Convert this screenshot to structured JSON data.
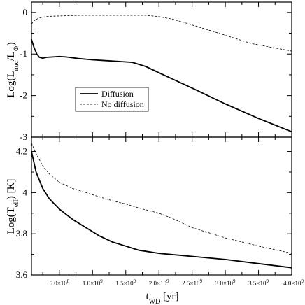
{
  "chart_data": [
    {
      "type": "line",
      "panel": "top",
      "ylabel": "Log(L_nuc/L_⊙)",
      "ylabel_main": "Log(L",
      "ylabel_sub": "nuc",
      "ylabel_mid": "/L",
      "ylabel_sub2": "⊙",
      "ylabel_end": ")",
      "xlim": [
        80000000.0,
        4000000000.0
      ],
      "ylim": [
        -3,
        0.25
      ],
      "yticks": [
        0,
        -1,
        -2,
        -3
      ],
      "ytick_labels": [
        "0",
        "-1",
        "-2",
        "-3"
      ],
      "legend": {
        "placement": "center-left",
        "entries": [
          "Diffusion",
          "No diffusion"
        ]
      },
      "series": [
        {
          "name": "Diffusion",
          "style": "solid",
          "x": [
            80000000.0,
            120000000.0,
            160000000.0,
            200000000.0,
            250000000.0,
            300000000.0,
            400000000.0,
            500000000.0,
            600000000.0,
            800000000.0,
            1000000000.0,
            1200000000.0,
            1400000000.0,
            1600000000.0,
            1800000000.0,
            2000000000.0,
            2500000000.0,
            3000000000.0,
            3500000000.0,
            4000000000.0
          ],
          "y": [
            -0.65,
            -0.85,
            -1.0,
            -1.08,
            -1.1,
            -1.08,
            -1.07,
            -1.06,
            -1.07,
            -1.11,
            -1.14,
            -1.16,
            -1.18,
            -1.2,
            -1.3,
            -1.45,
            -1.82,
            -2.2,
            -2.55,
            -2.87
          ]
        },
        {
          "name": "No diffusion",
          "style": "dashed",
          "x": [
            80000000.0,
            120000000.0,
            160000000.0,
            200000000.0,
            300000000.0,
            400000000.0,
            600000000.0,
            800000000.0,
            1000000000.0,
            1400000000.0,
            1800000000.0,
            2000000000.0,
            2200000000.0,
            2400000000.0,
            2600000000.0,
            3000000000.0,
            3400000000.0,
            3800000000.0,
            4000000000.0
          ],
          "y": [
            -0.28,
            -0.2,
            -0.16,
            -0.13,
            -0.1,
            -0.09,
            -0.08,
            -0.07,
            -0.07,
            -0.07,
            -0.07,
            -0.1,
            -0.16,
            -0.25,
            -0.35,
            -0.55,
            -0.75,
            -0.87,
            -0.93
          ]
        }
      ]
    },
    {
      "type": "line",
      "panel": "bottom",
      "ylabel": "Log(T_eff) [K]",
      "ylabel_main": "Log(T",
      "ylabel_sub": "eff",
      "ylabel_end": ")  [K]",
      "xlabel_main": "t",
      "xlabel_sub": "WD",
      "xlabel_end": "  [yr]",
      "xlim": [
        80000000.0,
        4000000000.0
      ],
      "ylim": [
        3.6,
        4.27
      ],
      "yticks": [
        3.6,
        3.8,
        4.0,
        4.2
      ],
      "ytick_labels": [
        "3.6",
        "3.8",
        "4",
        "4.2"
      ],
      "xticks": [
        500000000.0,
        1000000000.0,
        1500000000.0,
        2000000000.0,
        2500000000.0,
        3000000000.0,
        3500000000.0,
        4000000000.0
      ],
      "xtick_labels": [
        {
          "m": "5.0×10",
          "e": "8"
        },
        {
          "m": "1.0×10",
          "e": "9"
        },
        {
          "m": "1.5×10",
          "e": "9"
        },
        {
          "m": "2.0×10",
          "e": "9"
        },
        {
          "m": "2.5×10",
          "e": "9"
        },
        {
          "m": "3.0×10",
          "e": "9"
        },
        {
          "m": "3.5×10",
          "e": "9"
        },
        {
          "m": "4.0×10",
          "e": "9"
        }
      ],
      "series": [
        {
          "name": "Diffusion",
          "style": "solid",
          "x": [
            80000000.0,
            150000000.0,
            250000000.0,
            350000000.0,
            500000000.0,
            700000000.0,
            900000000.0,
            1100000000.0,
            1300000000.0,
            1500000000.0,
            1700000000.0,
            2000000000.0,
            2500000000.0,
            3000000000.0,
            3500000000.0,
            4000000000.0
          ],
          "y": [
            4.2,
            4.1,
            4.02,
            3.97,
            3.92,
            3.87,
            3.83,
            3.79,
            3.76,
            3.74,
            3.72,
            3.705,
            3.69,
            3.675,
            3.655,
            3.635
          ]
        },
        {
          "name": "No diffusion",
          "style": "dashed",
          "x": [
            80000000.0,
            150000000.0,
            250000000.0,
            350000000.0,
            500000000.0,
            700000000.0,
            900000000.0,
            1100000000.0,
            1300000000.0,
            1500000000.0,
            1700000000.0,
            2000000000.0,
            2200000000.0,
            2500000000.0,
            3000000000.0,
            3500000000.0,
            4000000000.0
          ],
          "y": [
            4.24,
            4.19,
            4.13,
            4.09,
            4.05,
            4.02,
            4.0,
            3.98,
            3.96,
            3.945,
            3.925,
            3.9,
            3.875,
            3.83,
            3.78,
            3.74,
            3.705
          ]
        }
      ]
    }
  ]
}
